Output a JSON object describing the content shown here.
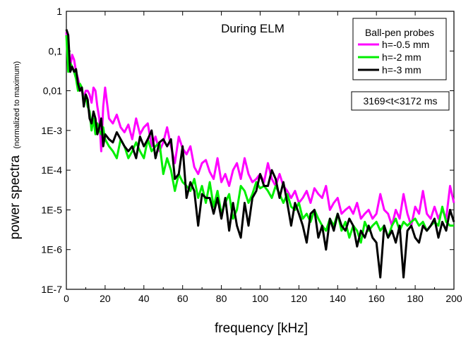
{
  "chart_data": {
    "type": "line",
    "annotation": "During ELM",
    "xlabel": "frequency [kHz]",
    "ylabel": "power spectra",
    "ylabel_sub": "(normalized to maximum)",
    "xlim": [
      0,
      200
    ],
    "ylim": [
      1e-07,
      1
    ],
    "yscale": "log",
    "x_ticks": [
      0,
      20,
      40,
      60,
      80,
      100,
      120,
      140,
      160,
      180,
      200
    ],
    "y_ticks": [
      {
        "value": 1,
        "label": "1"
      },
      {
        "value": 0.1,
        "label": "0,1"
      },
      {
        "value": 0.01,
        "label": "0,01"
      },
      {
        "value": 0.001,
        "label": "1E-3"
      },
      {
        "value": 0.0001,
        "label": "1E-4"
      },
      {
        "value": 1e-05,
        "label": "1E-5"
      },
      {
        "value": 1e-06,
        "label": "1E-6"
      },
      {
        "value": 1e-07,
        "label": "1E-7"
      }
    ],
    "legend": {
      "title": "Ball-pen probes",
      "position": "top-right"
    },
    "time_window_label": "3169<t<3172 ms",
    "series": [
      {
        "name": "h=-0.5 mm",
        "color": "#ff00ff",
        "x": [
          0,
          1,
          2,
          3,
          4,
          5,
          6,
          7,
          8,
          9,
          10,
          11,
          12,
          13,
          14,
          15,
          16,
          17,
          18,
          19,
          20,
          22,
          24,
          26,
          28,
          30,
          32,
          34,
          36,
          38,
          40,
          42,
          44,
          46,
          48,
          50,
          52,
          54,
          56,
          58,
          60,
          62,
          64,
          66,
          68,
          70,
          72,
          74,
          76,
          78,
          80,
          82,
          84,
          86,
          88,
          90,
          92,
          94,
          96,
          98,
          100,
          102,
          104,
          106,
          108,
          110,
          112,
          114,
          116,
          118,
          120,
          122,
          124,
          126,
          128,
          130,
          132,
          134,
          136,
          138,
          140,
          142,
          144,
          146,
          148,
          150,
          152,
          154,
          156,
          158,
          160,
          162,
          164,
          166,
          168,
          170,
          172,
          174,
          176,
          178,
          180,
          182,
          184,
          186,
          188,
          190,
          192,
          194,
          196,
          198,
          200
        ],
        "y": [
          0.3,
          0.05,
          0.04,
          0.08,
          0.06,
          0.03,
          0.02,
          0.012,
          0.01,
          0.007,
          0.01,
          0.01,
          0.008,
          0.005,
          0.012,
          0.01,
          0.004,
          0.002,
          0.0003,
          0.004,
          0.012,
          0.002,
          0.0015,
          0.0025,
          0.0012,
          0.0009,
          0.0014,
          0.0006,
          0.002,
          0.0008,
          0.0012,
          0.0015,
          0.0004,
          0.0007,
          0.0003,
          0.0005,
          0.0012,
          0.0004,
          0.00015,
          0.0007,
          0.00035,
          0.00025,
          0.0004,
          0.00012,
          8e-05,
          0.00015,
          0.00018,
          9e-05,
          6e-05,
          0.0002,
          5e-05,
          8e-05,
          4e-05,
          0.0001,
          0.00015,
          6e-05,
          0.0002,
          8e-05,
          5e-05,
          6e-05,
          8e-05,
          5e-05,
          0.00015,
          6e-05,
          4e-05,
          8e-05,
          4e-05,
          3e-05,
          2e-05,
          3e-05,
          1.5e-05,
          2e-05,
          3e-05,
          1.5e-05,
          3.5e-05,
          2.5e-05,
          2e-05,
          4e-05,
          1e-05,
          1.5e-05,
          2e-05,
          8e-06,
          1e-05,
          1.2e-05,
          8e-06,
          1.5e-05,
          6e-06,
          8e-06,
          1e-05,
          6e-06,
          8e-06,
          2.5e-05,
          1e-05,
          8e-06,
          4e-06,
          1e-05,
          6e-06,
          2.5e-05,
          8e-06,
          4e-06,
          1.2e-05,
          8e-06,
          3e-05,
          8e-06,
          6e-06,
          1.2e-05,
          6e-06,
          1e-05,
          6e-06,
          4e-05,
          1.5e-05
        ]
      },
      {
        "name": "h=-2 mm",
        "color": "#00ee00",
        "x": [
          0,
          1,
          2,
          3,
          4,
          5,
          6,
          7,
          8,
          9,
          10,
          11,
          12,
          13,
          14,
          15,
          16,
          17,
          18,
          19,
          20,
          22,
          24,
          26,
          28,
          30,
          32,
          34,
          36,
          38,
          40,
          42,
          44,
          46,
          48,
          50,
          52,
          54,
          56,
          58,
          60,
          62,
          64,
          66,
          68,
          70,
          72,
          74,
          76,
          78,
          80,
          82,
          84,
          86,
          88,
          90,
          92,
          94,
          96,
          98,
          100,
          102,
          104,
          106,
          108,
          110,
          112,
          114,
          116,
          118,
          120,
          122,
          124,
          126,
          128,
          130,
          132,
          134,
          136,
          138,
          140,
          142,
          144,
          146,
          148,
          150,
          152,
          154,
          156,
          158,
          160,
          162,
          164,
          166,
          168,
          170,
          172,
          174,
          176,
          178,
          180,
          182,
          184,
          186,
          188,
          190,
          192,
          194,
          196,
          198,
          200
        ],
        "y": [
          0.25,
          0.03,
          0.05,
          0.04,
          0.03,
          0.02,
          0.01,
          0.015,
          0.012,
          0.005,
          0.008,
          0.004,
          0.003,
          0.001,
          0.002,
          0.0008,
          0.0015,
          0.001,
          0.0008,
          0.0012,
          0.0006,
          0.0004,
          0.0003,
          0.0002,
          0.0006,
          0.0004,
          0.0002,
          0.0003,
          0.0005,
          0.0003,
          0.0002,
          0.0006,
          0.0003,
          0.0004,
          0.0005,
          8e-05,
          0.0002,
          0.0001,
          3e-05,
          8e-05,
          5e-05,
          4e-05,
          3e-05,
          6e-05,
          2e-05,
          4e-05,
          1.5e-05,
          5e-05,
          1.2e-05,
          3e-05,
          8e-06,
          1.5e-05,
          2.5e-05,
          6e-06,
          1e-05,
          4e-05,
          3e-05,
          1.5e-05,
          2.5e-05,
          5e-05,
          3.5e-05,
          4e-05,
          3e-05,
          2e-05,
          4e-05,
          2.5e-05,
          1.5e-05,
          2.5e-05,
          1.2e-05,
          1e-05,
          1.5e-05,
          6e-06,
          8e-06,
          5e-06,
          1e-05,
          6e-06,
          4e-06,
          3e-06,
          6e-06,
          4e-06,
          8e-06,
          3e-06,
          5e-06,
          2e-06,
          4e-06,
          3e-06,
          1.5e-06,
          5e-06,
          3e-06,
          4e-06,
          5e-06,
          3e-06,
          4e-06,
          2e-06,
          4e-06,
          6e-06,
          3e-06,
          5e-06,
          4e-06,
          5e-06,
          6e-06,
          4e-06,
          5e-06,
          3e-06,
          4e-06,
          5e-06,
          4e-06,
          1.2e-05,
          5e-06,
          4e-06,
          4e-06
        ]
      },
      {
        "name": "h=-3 mm",
        "color": "#000000",
        "x": [
          0,
          1,
          2,
          3,
          4,
          5,
          6,
          7,
          8,
          9,
          10,
          11,
          12,
          13,
          14,
          15,
          16,
          17,
          18,
          19,
          20,
          22,
          24,
          26,
          28,
          30,
          32,
          34,
          36,
          38,
          40,
          42,
          44,
          46,
          48,
          50,
          52,
          54,
          56,
          58,
          60,
          62,
          64,
          66,
          68,
          70,
          72,
          74,
          76,
          78,
          80,
          82,
          84,
          86,
          88,
          90,
          92,
          94,
          96,
          98,
          100,
          102,
          104,
          106,
          108,
          110,
          112,
          114,
          116,
          118,
          120,
          122,
          124,
          126,
          128,
          130,
          132,
          134,
          136,
          138,
          140,
          142,
          144,
          146,
          148,
          150,
          152,
          154,
          156,
          158,
          160,
          162,
          164,
          166,
          168,
          170,
          172,
          174,
          176,
          178,
          180,
          182,
          184,
          186,
          188,
          190,
          192,
          194,
          196,
          198,
          200
        ],
        "y": [
          0.35,
          0.25,
          0.03,
          0.04,
          0.03,
          0.035,
          0.015,
          0.01,
          0.012,
          0.004,
          0.008,
          0.006,
          0.002,
          0.0015,
          0.003,
          0.002,
          0.0008,
          0.0012,
          0.002,
          0.0004,
          0.0008,
          0.0006,
          0.0005,
          0.0009,
          0.0006,
          0.0004,
          0.0003,
          0.0004,
          0.0002,
          0.0007,
          0.0004,
          0.0006,
          0.001,
          0.0002,
          0.0005,
          0.0006,
          0.0004,
          0.0006,
          6e-05,
          8e-05,
          0.0004,
          2e-05,
          5e-05,
          3e-05,
          4e-06,
          2.5e-05,
          2e-05,
          2e-05,
          8e-06,
          2e-05,
          6e-06,
          2e-05,
          3e-06,
          1.5e-05,
          4e-06,
          2e-06,
          1.5e-05,
          4e-06,
          2e-05,
          3e-05,
          8e-05,
          4e-05,
          4e-05,
          0.0001,
          6e-05,
          2e-05,
          5e-05,
          1.5e-05,
          4e-06,
          1.5e-05,
          8e-06,
          4e-06,
          1.5e-06,
          8e-06,
          1e-05,
          2e-06,
          4e-06,
          1e-06,
          6e-06,
          3e-06,
          8e-06,
          4e-06,
          3e-06,
          6e-06,
          4e-06,
          1.2e-06,
          3e-06,
          2e-06,
          4e-06,
          2e-06,
          1.5e-06,
          2e-07,
          4e-06,
          2e-06,
          3e-06,
          1.5e-06,
          4e-06,
          2e-07,
          3e-06,
          4e-06,
          2e-06,
          1.5e-06,
          4e-06,
          3e-06,
          4e-06,
          6e-06,
          2e-06,
          5e-06,
          3e-06,
          1e-05,
          5e-06
        ]
      }
    ]
  }
}
